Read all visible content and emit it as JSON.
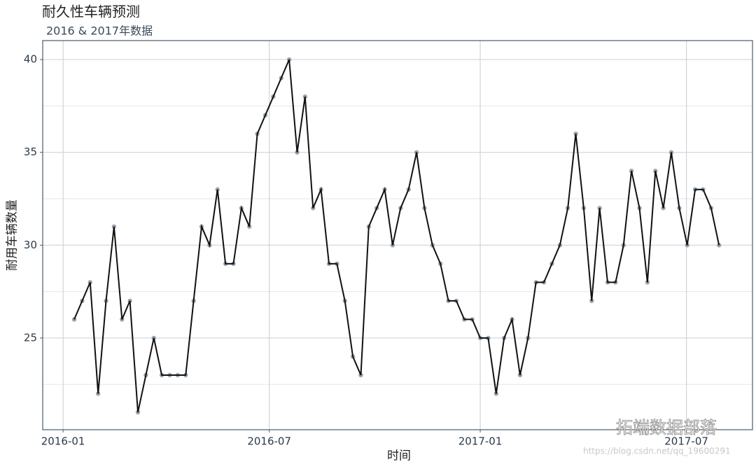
{
  "chart_data": {
    "type": "line",
    "title": "耐久性车辆预测",
    "subtitle": "2016 & 2017年数据",
    "x_label": "时间",
    "y_label": "耐用车辆数量",
    "categories": [
      null,
      null,
      null,
      null,
      null,
      null,
      null,
      null,
      null,
      null,
      null,
      null,
      null,
      null,
      null,
      null,
      null,
      null,
      null,
      null,
      null,
      null,
      null,
      null,
      null,
      null,
      null,
      null,
      null,
      null,
      null,
      null,
      null,
      null,
      null,
      null,
      null,
      null,
      null,
      null,
      null,
      null,
      null,
      null,
      null,
      null,
      null,
      null,
      null,
      null,
      null,
      null,
      null,
      null,
      null,
      null,
      null,
      null,
      null,
      null,
      null,
      null,
      null,
      null,
      null,
      null,
      null,
      null,
      null,
      null,
      null,
      null,
      null,
      null,
      null,
      null,
      null,
      null,
      null,
      null,
      null,
      null
    ],
    "values": [
      26,
      27,
      28,
      22,
      27,
      31,
      26,
      27,
      21,
      23,
      25,
      23,
      23,
      23,
      23,
      27,
      31,
      30,
      33,
      29,
      29,
      32,
      31,
      36,
      37,
      38,
      39,
      40,
      35,
      38,
      32,
      33,
      29,
      29,
      27,
      24,
      23,
      31,
      32,
      33,
      30,
      32,
      33,
      35,
      32,
      30,
      29,
      27,
      27,
      26,
      26,
      25,
      25,
      22,
      25,
      26,
      23,
      25,
      28,
      28,
      29,
      30,
      32,
      36,
      32,
      27,
      32,
      28,
      28,
      30,
      34,
      32,
      28,
      34,
      32,
      35,
      32,
      30,
      33,
      33,
      32,
      30
    ],
    "line_color": "#111111",
    "point_color": "#8796a6",
    "xlim": [
      -3.96,
      85.2
    ],
    "xticks": [
      {
        "value": -1.4,
        "label": "2016-01"
      },
      {
        "value": 24.5,
        "label": "2016-07"
      },
      {
        "value": 51.0,
        "label": "2017-01"
      },
      {
        "value": 76.9,
        "label": "2017-07"
      }
    ],
    "ylim": [
      20.06,
      41.02
    ],
    "yticks": [
      25,
      30,
      35,
      40
    ],
    "yminor": [
      22.5,
      27.5,
      32.5,
      37.5
    ],
    "grid": true,
    "watermark": "拓端数据部落",
    "watermark_url": "https://blog.csdn.net/qq_19600291"
  }
}
